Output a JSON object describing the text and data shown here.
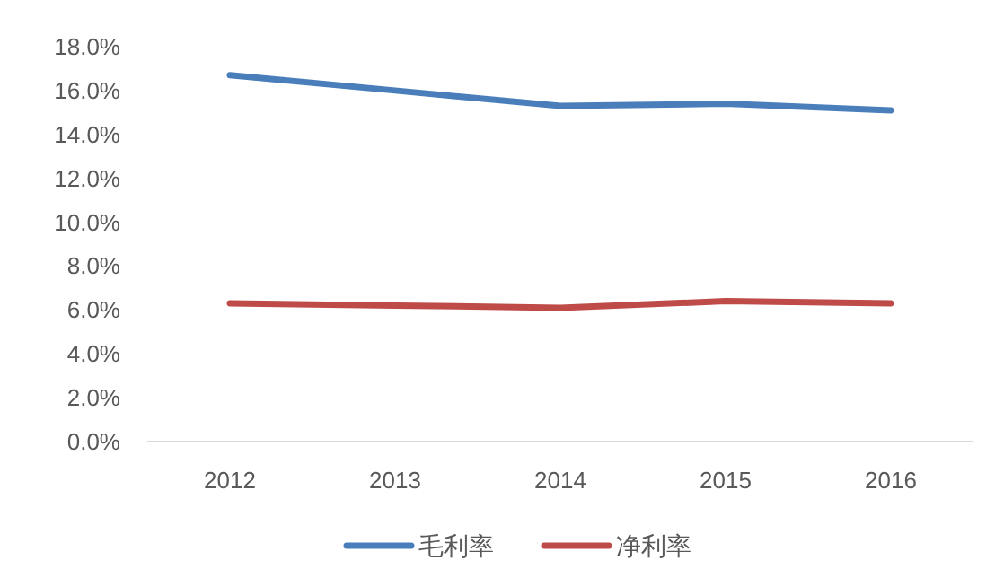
{
  "chart_data": {
    "type": "line",
    "categories": [
      "2012",
      "2013",
      "2014",
      "2015",
      "2016"
    ],
    "series": [
      {
        "name": "毛利率",
        "color": "#4a7ebb",
        "values": [
          16.7,
          16.0,
          15.3,
          15.4,
          15.1
        ]
      },
      {
        "name": "净利率",
        "color": "#be4b48",
        "values": [
          6.3,
          6.2,
          6.1,
          6.4,
          6.3
        ]
      }
    ],
    "ylim": [
      0,
      18
    ],
    "yticks": [
      {
        "value": 0,
        "label": "0.0%"
      },
      {
        "value": 2,
        "label": "2.0%"
      },
      {
        "value": 4,
        "label": "4.0%"
      },
      {
        "value": 6,
        "label": "6.0%"
      },
      {
        "value": 8,
        "label": "8.0%"
      },
      {
        "value": 10,
        "label": "10.0%"
      },
      {
        "value": 12,
        "label": "12.0%"
      },
      {
        "value": 14,
        "label": "14.0%"
      },
      {
        "value": 16,
        "label": "16.0%"
      },
      {
        "value": 18,
        "label": "18.0%"
      }
    ],
    "legend": "bottom"
  }
}
